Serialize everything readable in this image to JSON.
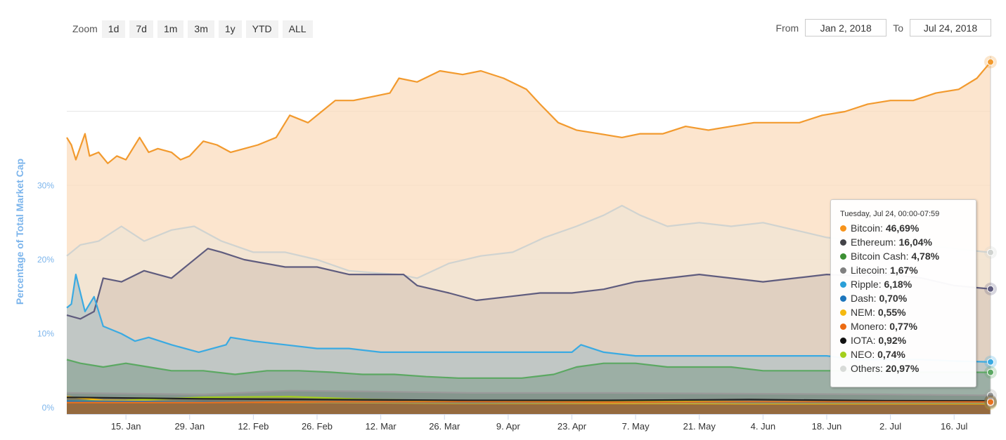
{
  "toolbar": {
    "zoom_label": "Zoom",
    "zoom_buttons": [
      "1d",
      "7d",
      "1m",
      "3m",
      "1y",
      "YTD",
      "ALL"
    ],
    "from_label": "From",
    "from_value": "Jan 2, 2018",
    "to_label": "To",
    "to_value": "Jul 24, 2018"
  },
  "tooltip": {
    "header": "Tuesday, Jul 24, 00:00-07:59",
    "rows": [
      {
        "label": "Bitcoin: ",
        "value": "46,69%",
        "color": "#f7931a"
      },
      {
        "label": "Ethereum: ",
        "value": "16,04%",
        "color": "#434348"
      },
      {
        "label": "Bitcoin Cash: ",
        "value": "4,78%",
        "color": "#3c8f33"
      },
      {
        "label": "Litecoin: ",
        "value": "1,67%",
        "color": "#808080"
      },
      {
        "label": "Ripple: ",
        "value": "6,18%",
        "color": "#2a9fd8"
      },
      {
        "label": "Dash: ",
        "value": "0,70%",
        "color": "#1c75bc"
      },
      {
        "label": "NEM: ",
        "value": "0,55%",
        "color": "#f5b90f"
      },
      {
        "label": "Monero: ",
        "value": "0,77%",
        "color": "#ec6a11"
      },
      {
        "label": "IOTA: ",
        "value": "0,92%",
        "color": "#111111"
      },
      {
        "label": "NEO: ",
        "value": "0,74%",
        "color": "#a3cf1d"
      },
      {
        "label": "Others: ",
        "value": "20,97%",
        "color": "#d8dbd8"
      }
    ]
  },
  "chart_data": {
    "type": "area",
    "ylabel": "Percentage of Total Market Cap",
    "ylim": [
      0,
      47
    ],
    "yticks": [
      0,
      10,
      20,
      30
    ],
    "ytick_labels": [
      "0%",
      "10%",
      "20%",
      "30%"
    ],
    "grid": true,
    "xlim": [
      "2018-01-02",
      "2018-07-24"
    ],
    "xticks": [
      {
        "date": "2018-01-15",
        "label": "15. Jan"
      },
      {
        "date": "2018-01-29",
        "label": "29. Jan"
      },
      {
        "date": "2018-02-12",
        "label": "12. Feb"
      },
      {
        "date": "2018-02-26",
        "label": "26. Feb"
      },
      {
        "date": "2018-03-12",
        "label": "12. Mar"
      },
      {
        "date": "2018-03-26",
        "label": "26. Mar"
      },
      {
        "date": "2018-04-09",
        "label": "9. Apr"
      },
      {
        "date": "2018-04-23",
        "label": "23. Apr"
      },
      {
        "date": "2018-05-07",
        "label": "7. May"
      },
      {
        "date": "2018-05-21",
        "label": "21. May"
      },
      {
        "date": "2018-06-04",
        "label": "4. Jun"
      },
      {
        "date": "2018-06-18",
        "label": "18. Jun"
      },
      {
        "date": "2018-07-02",
        "label": "2. Jul"
      },
      {
        "date": "2018-07-16",
        "label": "16. Jul"
      }
    ],
    "series": [
      {
        "name": "Others",
        "line": "#d0d3d0",
        "fill": "#f0e4d4",
        "x": [
          "2018-01-02",
          "2018-01-05",
          "2018-01-09",
          "2018-01-14",
          "2018-01-19",
          "2018-01-25",
          "2018-01-30",
          "2018-02-05",
          "2018-02-12",
          "2018-02-19",
          "2018-02-26",
          "2018-03-05",
          "2018-03-11",
          "2018-03-16",
          "2018-03-20",
          "2018-03-27",
          "2018-04-03",
          "2018-04-10",
          "2018-04-17",
          "2018-04-24",
          "2018-04-30",
          "2018-05-04",
          "2018-05-08",
          "2018-05-14",
          "2018-05-21",
          "2018-05-28",
          "2018-06-04",
          "2018-06-11",
          "2018-06-18",
          "2018-06-25",
          "2018-07-02",
          "2018-07-09",
          "2018-07-16",
          "2018-07-24"
        ],
        "y": [
          20.5,
          22.0,
          22.5,
          24.5,
          22.5,
          24.0,
          24.5,
          22.5,
          21.0,
          21.0,
          20.0,
          18.5,
          18.2,
          18.0,
          17.5,
          19.5,
          20.5,
          21.0,
          23.0,
          24.5,
          26.0,
          27.3,
          26.0,
          24.5,
          25.0,
          24.5,
          25.0,
          24.0,
          23.0,
          22.5,
          22.5,
          22.0,
          21.5,
          20.97
        ]
      },
      {
        "name": "Ethereum",
        "line": "#5f5c7e",
        "fill": "#d9c8bb",
        "x": [
          "2018-01-02",
          "2018-01-05",
          "2018-01-08",
          "2018-01-10",
          "2018-01-14",
          "2018-01-19",
          "2018-01-25",
          "2018-01-29",
          "2018-02-02",
          "2018-02-05",
          "2018-02-10",
          "2018-02-19",
          "2018-02-26",
          "2018-03-05",
          "2018-03-12",
          "2018-03-17",
          "2018-03-20",
          "2018-03-27",
          "2018-04-02",
          "2018-04-09",
          "2018-04-16",
          "2018-04-23",
          "2018-04-30",
          "2018-05-07",
          "2018-05-14",
          "2018-05-21",
          "2018-05-28",
          "2018-06-04",
          "2018-06-11",
          "2018-06-18",
          "2018-06-25",
          "2018-07-02",
          "2018-07-09",
          "2018-07-16",
          "2018-07-24"
        ],
        "y": [
          12.5,
          12.0,
          13.0,
          17.5,
          17.0,
          18.5,
          17.5,
          19.5,
          21.5,
          21.0,
          20.0,
          19.0,
          19.0,
          18.0,
          18.0,
          18.0,
          16.5,
          15.5,
          14.5,
          15.0,
          15.5,
          15.5,
          16.0,
          17.0,
          17.5,
          18.0,
          17.5,
          17.0,
          17.5,
          18.0,
          17.8,
          18.0,
          17.5,
          16.5,
          16.04
        ]
      },
      {
        "name": "Ripple",
        "line": "#3aaae2",
        "fill": "#b7c4c6",
        "x": [
          "2018-01-02",
          "2018-01-03",
          "2018-01-04",
          "2018-01-06",
          "2018-01-08",
          "2018-01-10",
          "2018-01-14",
          "2018-01-17",
          "2018-01-20",
          "2018-01-25",
          "2018-01-31",
          "2018-02-06",
          "2018-02-07",
          "2018-02-12",
          "2018-02-19",
          "2018-02-26",
          "2018-03-05",
          "2018-03-12",
          "2018-03-19",
          "2018-03-26",
          "2018-04-02",
          "2018-04-09",
          "2018-04-16",
          "2018-04-23",
          "2018-04-25",
          "2018-04-30",
          "2018-05-07",
          "2018-05-14",
          "2018-05-21",
          "2018-05-28",
          "2018-06-04",
          "2018-06-11",
          "2018-06-18",
          "2018-06-25",
          "2018-07-02",
          "2018-07-09",
          "2018-07-16",
          "2018-07-24"
        ],
        "y": [
          13.5,
          14.0,
          18.0,
          13.0,
          15.0,
          11.0,
          10.0,
          9.0,
          9.5,
          8.5,
          7.5,
          8.5,
          9.5,
          9.0,
          8.5,
          8.0,
          8.0,
          7.5,
          7.5,
          7.5,
          7.5,
          7.5,
          7.5,
          7.5,
          8.5,
          7.5,
          7.0,
          7.0,
          7.0,
          7.0,
          7.0,
          7.0,
          7.0,
          6.5,
          6.5,
          6.5,
          6.3,
          6.18
        ]
      },
      {
        "name": "Bitcoin Cash",
        "line": "#5ba862",
        "fill": "#8fa79a",
        "x": [
          "2018-01-02",
          "2018-01-05",
          "2018-01-10",
          "2018-01-15",
          "2018-01-20",
          "2018-01-25",
          "2018-02-01",
          "2018-02-08",
          "2018-02-15",
          "2018-02-22",
          "2018-03-01",
          "2018-03-08",
          "2018-03-15",
          "2018-03-22",
          "2018-03-29",
          "2018-04-05",
          "2018-04-12",
          "2018-04-19",
          "2018-04-24",
          "2018-04-30",
          "2018-05-07",
          "2018-05-14",
          "2018-05-21",
          "2018-05-28",
          "2018-06-04",
          "2018-06-11",
          "2018-06-18",
          "2018-06-25",
          "2018-07-02",
          "2018-07-09",
          "2018-07-16",
          "2018-07-24"
        ],
        "y": [
          6.5,
          6.0,
          5.5,
          6.0,
          5.5,
          5.0,
          5.0,
          4.5,
          5.0,
          5.0,
          4.8,
          4.5,
          4.5,
          4.2,
          4.0,
          4.0,
          4.0,
          4.5,
          5.5,
          6.0,
          6.0,
          5.5,
          5.5,
          5.5,
          5.0,
          5.0,
          5.0,
          5.0,
          5.0,
          4.8,
          4.8,
          4.78
        ]
      },
      {
        "name": "Litecoin",
        "line": "#9a9a9a",
        "fill": "#7e8e86",
        "x": [
          "2018-01-02",
          "2018-02-01",
          "2018-02-20",
          "2018-03-10",
          "2018-04-01",
          "2018-05-01",
          "2018-06-01",
          "2018-07-01",
          "2018-07-24"
        ],
        "y": [
          2.0,
          1.8,
          2.3,
          2.2,
          2.0,
          2.0,
          1.9,
          1.8,
          1.67
        ]
      },
      {
        "name": "IOTA",
        "line": "#222222",
        "fill": "#7a7565",
        "x": [
          "2018-01-02",
          "2018-02-01",
          "2018-03-01",
          "2018-04-01",
          "2018-05-01",
          "2018-06-01",
          "2018-07-01",
          "2018-07-24"
        ],
        "y": [
          1.4,
          1.2,
          1.1,
          1.0,
          1.0,
          1.1,
          0.95,
          0.92
        ]
      },
      {
        "name": "NEO",
        "line": "#a3cf1d",
        "fill": "#8e8a58",
        "x": [
          "2018-01-02",
          "2018-01-15",
          "2018-02-01",
          "2018-02-20",
          "2018-03-10",
          "2018-04-01",
          "2018-05-01",
          "2018-06-01",
          "2018-07-01",
          "2018-07-24"
        ],
        "y": [
          0.9,
          1.0,
          1.4,
          1.5,
          1.1,
          0.9,
          0.9,
          0.8,
          0.75,
          0.74
        ]
      },
      {
        "name": "NEM",
        "line": "#f5b90f",
        "fill": "#9e8240",
        "x": [
          "2018-01-02",
          "2018-01-10",
          "2018-02-01",
          "2018-03-01",
          "2018-04-01",
          "2018-05-01",
          "2018-06-01",
          "2018-07-24"
        ],
        "y": [
          1.5,
          1.0,
          0.8,
          0.7,
          0.6,
          0.6,
          0.55,
          0.55
        ]
      },
      {
        "name": "Monero",
        "line": "#e8711d",
        "fill": "#9e6a35",
        "x": [
          "2018-01-02",
          "2018-02-01",
          "2018-03-01",
          "2018-04-01",
          "2018-05-01",
          "2018-06-01",
          "2018-07-24"
        ],
        "y": [
          0.7,
          0.7,
          0.8,
          0.8,
          0.75,
          0.8,
          0.77
        ]
      },
      {
        "name": "Dash",
        "line": "#1c75bc",
        "fill": "#7a6a5e",
        "x": [
          "2018-01-02",
          "2018-02-01",
          "2018-03-01",
          "2018-04-01",
          "2018-05-01",
          "2018-06-01",
          "2018-07-24"
        ],
        "y": [
          0.9,
          0.8,
          0.75,
          0.7,
          0.72,
          0.7,
          0.7
        ]
      },
      {
        "name": "Bitcoin",
        "line": "#f29a2e",
        "fill": "#fbdcbd",
        "x": [
          "2018-01-02",
          "2018-01-03",
          "2018-01-04",
          "2018-01-06",
          "2018-01-07",
          "2018-01-09",
          "2018-01-11",
          "2018-01-13",
          "2018-01-15",
          "2018-01-18",
          "2018-01-20",
          "2018-01-22",
          "2018-01-25",
          "2018-01-27",
          "2018-01-29",
          "2018-02-01",
          "2018-02-04",
          "2018-02-07",
          "2018-02-10",
          "2018-02-13",
          "2018-02-17",
          "2018-02-20",
          "2018-02-24",
          "2018-02-27",
          "2018-03-02",
          "2018-03-06",
          "2018-03-10",
          "2018-03-14",
          "2018-03-16",
          "2018-03-20",
          "2018-03-25",
          "2018-03-30",
          "2018-04-03",
          "2018-04-08",
          "2018-04-13",
          "2018-04-16",
          "2018-04-20",
          "2018-04-24",
          "2018-04-29",
          "2018-05-04",
          "2018-05-08",
          "2018-05-13",
          "2018-05-18",
          "2018-05-23",
          "2018-05-28",
          "2018-06-02",
          "2018-06-07",
          "2018-06-12",
          "2018-06-17",
          "2018-06-22",
          "2018-06-27",
          "2018-07-02",
          "2018-07-07",
          "2018-07-12",
          "2018-07-17",
          "2018-07-21",
          "2018-07-24"
        ],
        "y": [
          36.5,
          35.5,
          33.5,
          37.0,
          34.0,
          34.5,
          33.0,
          34.0,
          33.5,
          36.5,
          34.5,
          35.0,
          34.5,
          33.5,
          34.0,
          36.0,
          35.5,
          34.5,
          35.0,
          35.5,
          36.5,
          39.5,
          38.5,
          40.0,
          41.5,
          41.5,
          42.0,
          42.5,
          44.5,
          44.0,
          45.5,
          45.0,
          45.5,
          44.5,
          43.0,
          41.0,
          38.5,
          37.5,
          37.0,
          36.5,
          37.0,
          37.0,
          38.0,
          37.5,
          38.0,
          38.5,
          38.5,
          38.5,
          39.5,
          40.0,
          41.0,
          41.5,
          41.5,
          42.5,
          43.0,
          44.5,
          46.69
        ]
      }
    ]
  }
}
